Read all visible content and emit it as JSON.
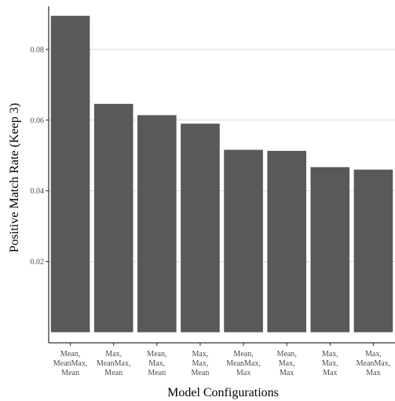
{
  "chart_data": {
    "type": "bar",
    "xlabel": "Model Configurations",
    "ylabel": "Positive Match Rate (Keep 3)",
    "ylim": [
      -0.003,
      0.0922
    ],
    "yticks": [
      0.02,
      0.04,
      0.06,
      0.08
    ],
    "ytick_labels": [
      "0.02",
      "0.04",
      "0.06",
      "0.08"
    ],
    "grid": "horizontal",
    "categories": [
      [
        "Mean,",
        "MeanMax,",
        "Mean"
      ],
      [
        "Max,",
        "MeanMax,",
        "Mean"
      ],
      [
        "Mean,",
        "Max,",
        "Mean"
      ],
      [
        "Max,",
        "Max,",
        "Mean"
      ],
      [
        "Mean,",
        "MeanMax,",
        "Max"
      ],
      [
        "Mean,",
        "Max,",
        "Max"
      ],
      [
        "Max,",
        "Max,",
        "Max"
      ],
      [
        "Max,",
        "MeanMax,",
        "Max"
      ]
    ],
    "values": [
      0.0895,
      0.0646,
      0.0614,
      0.059,
      0.0516,
      0.0513,
      0.0467,
      0.046
    ],
    "bar_color": "#595959",
    "grid_color": "#d9d9d9"
  }
}
